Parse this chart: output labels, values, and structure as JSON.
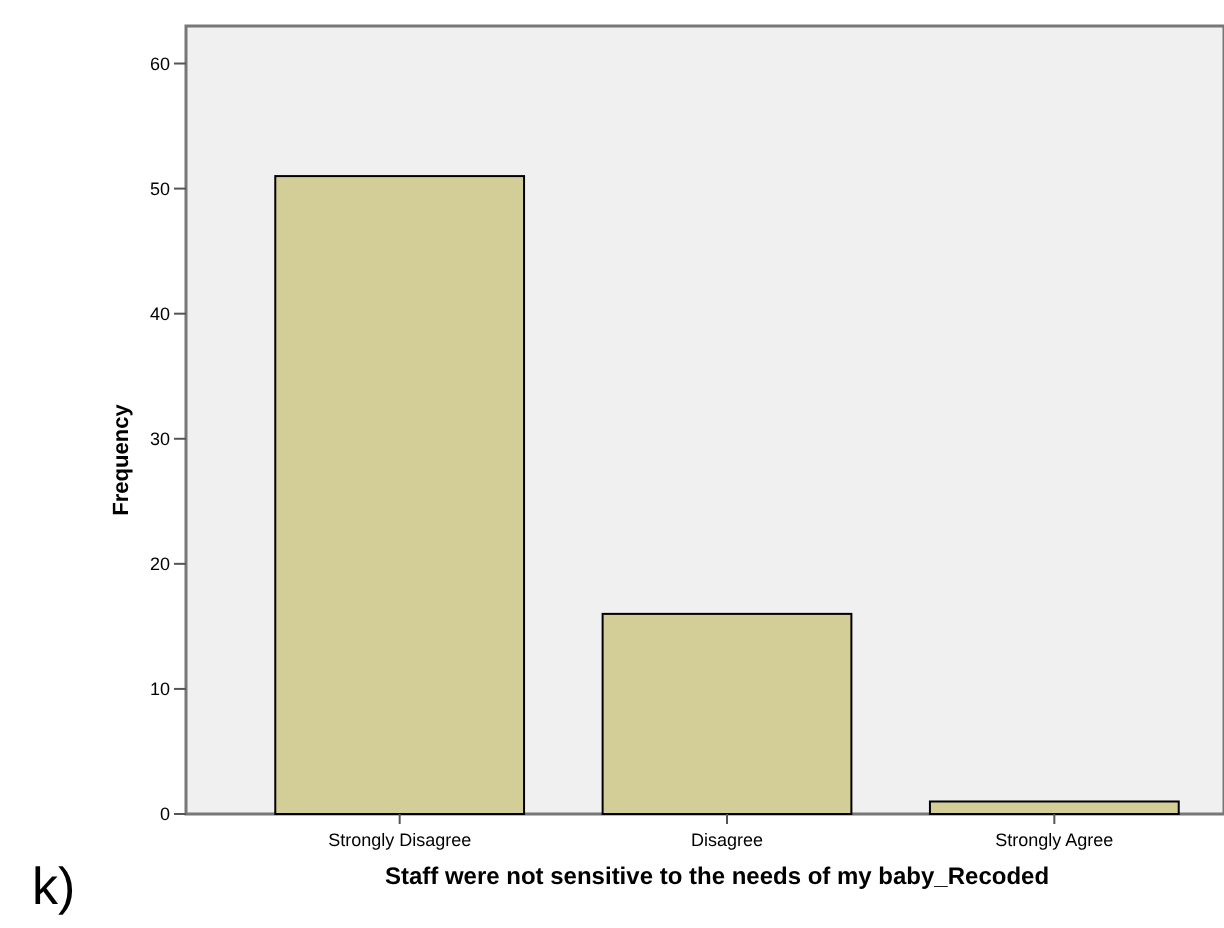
{
  "chart_data": {
    "type": "bar",
    "xlabel": "Staff were not sensitive to the needs of my baby_Recoded",
    "ylabel": "Frequency",
    "categories": [
      "Strongly Disagree",
      "Disagree",
      "Strongly Agree"
    ],
    "values": [
      51,
      16,
      1
    ],
    "color": "#d3ce97",
    "ylim": [
      0,
      63
    ],
    "yticks": [
      0,
      10,
      20,
      30,
      40,
      50,
      60
    ],
    "grid": false,
    "annotations": [
      "k)"
    ]
  }
}
